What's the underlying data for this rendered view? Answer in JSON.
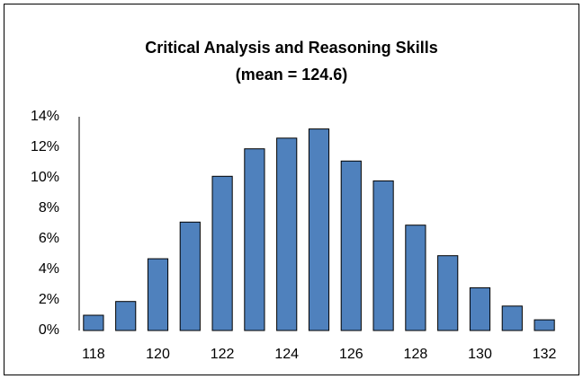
{
  "chart_data": {
    "type": "bar",
    "title": "Critical Analysis and Reasoning Skills",
    "subtitle": "(mean = 124.6)",
    "categories": [
      "118",
      null,
      "120",
      null,
      "122",
      null,
      "124",
      null,
      "126",
      null,
      "128",
      null,
      "130",
      null,
      "132"
    ],
    "values": [
      1.0,
      1.9,
      4.7,
      7.1,
      10.1,
      11.9,
      12.6,
      13.2,
      11.1,
      9.8,
      6.9,
      4.9,
      2.8,
      1.6,
      0.7
    ],
    "color": "#4f81bd",
    "ylim": [
      0,
      14
    ],
    "yticks": [
      {
        "value": 0,
        "label": "0%"
      },
      {
        "value": 2,
        "label": "2%"
      },
      {
        "value": 4,
        "label": "4%"
      },
      {
        "value": 6,
        "label": "6%"
      },
      {
        "value": 8,
        "label": "8%"
      },
      {
        "value": 10,
        "label": "10%"
      },
      {
        "value": 12,
        "label": "12%"
      },
      {
        "value": 14,
        "label": "14%"
      }
    ],
    "grid": false
  }
}
